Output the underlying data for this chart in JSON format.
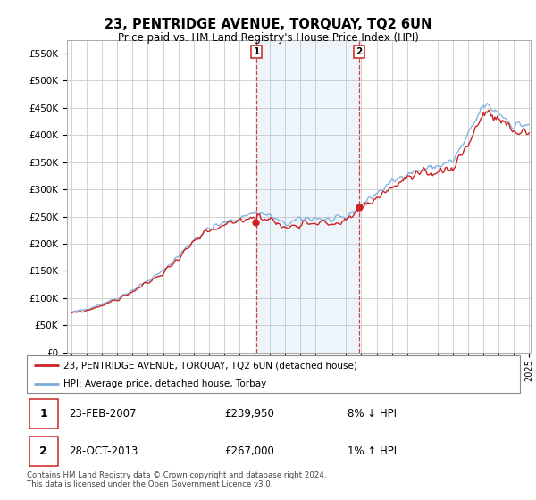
{
  "title": "23, PENTRIDGE AVENUE, TORQUAY, TQ2 6UN",
  "subtitle": "Price paid vs. HM Land Registry's House Price Index (HPI)",
  "ylabel_ticks": [
    "£0",
    "£50K",
    "£100K",
    "£150K",
    "£200K",
    "£250K",
    "£300K",
    "£350K",
    "£400K",
    "£450K",
    "£500K",
    "£550K"
  ],
  "ytick_values": [
    0,
    50000,
    100000,
    150000,
    200000,
    250000,
    300000,
    350000,
    400000,
    450000,
    500000,
    550000
  ],
  "ylim": [
    0,
    575000
  ],
  "x_start_year": 1995,
  "x_end_year": 2025,
  "sale1_year": 2007.12,
  "sale1_price": 239950,
  "sale1_label": "1",
  "sale1_date": "23-FEB-2007",
  "sale1_pct": "8% ↓ HPI",
  "sale2_year": 2013.83,
  "sale2_price": 267000,
  "sale2_label": "2",
  "sale2_date": "28-OCT-2013",
  "sale2_pct": "1% ↑ HPI",
  "legend_line1": "23, PENTRIDGE AVENUE, TORQUAY, TQ2 6UN (detached house)",
  "legend_line2": "HPI: Average price, detached house, Torbay",
  "footnote": "Contains HM Land Registry data © Crown copyright and database right 2024.\nThis data is licensed under the Open Government Licence v3.0.",
  "price_line_color": "#cc2222",
  "hpi_line_color": "#7aadda",
  "marker_color": "#cc2222",
  "vline_color": "#cc2222",
  "grid_color": "#cccccc",
  "bg_color": "#ffffff",
  "hpi_seed": 42,
  "price_seed": 99,
  "hpi_data": {
    "t": [
      1995.0,
      1995.083,
      1995.167,
      1995.25,
      1995.333,
      1995.417,
      1995.5,
      1995.583,
      1995.667,
      1995.75,
      1995.833,
      1995.917,
      1996.0,
      1996.083,
      1996.167,
      1996.25,
      1996.333,
      1996.417,
      1996.5,
      1996.583,
      1996.667,
      1996.75,
      1996.833,
      1996.917,
      1997.0,
      1997.083,
      1997.167,
      1997.25,
      1997.333,
      1997.417,
      1997.5,
      1997.583,
      1997.667,
      1997.75,
      1997.833,
      1997.917,
      1998.0,
      1998.083,
      1998.167,
      1998.25,
      1998.333,
      1998.417,
      1998.5,
      1998.583,
      1998.667,
      1998.75,
      1998.833,
      1998.917,
      1999.0,
      1999.083,
      1999.167,
      1999.25,
      1999.333,
      1999.417,
      1999.5,
      1999.583,
      1999.667,
      1999.75,
      1999.833,
      1999.917,
      2000.0,
      2000.083,
      2000.167,
      2000.25,
      2000.333,
      2000.417,
      2000.5,
      2000.583,
      2000.667,
      2000.75,
      2000.833,
      2000.917,
      2001.0,
      2001.083,
      2001.167,
      2001.25,
      2001.333,
      2001.417,
      2001.5,
      2001.583,
      2001.667,
      2001.75,
      2001.833,
      2001.917,
      2002.0,
      2002.083,
      2002.167,
      2002.25,
      2002.333,
      2002.417,
      2002.5,
      2002.583,
      2002.667,
      2002.75,
      2002.833,
      2002.917,
      2003.0,
      2003.083,
      2003.167,
      2003.25,
      2003.333,
      2003.417,
      2003.5,
      2003.583,
      2003.667,
      2003.75,
      2003.833,
      2003.917,
      2004.0,
      2004.083,
      2004.167,
      2004.25,
      2004.333,
      2004.417,
      2004.5,
      2004.583,
      2004.667,
      2004.75,
      2004.833,
      2004.917,
      2005.0,
      2005.083,
      2005.167,
      2005.25,
      2005.333,
      2005.417,
      2005.5,
      2005.583,
      2005.667,
      2005.75,
      2005.833,
      2005.917,
      2006.0,
      2006.083,
      2006.167,
      2006.25,
      2006.333,
      2006.417,
      2006.5,
      2006.583,
      2006.667,
      2006.75,
      2006.833,
      2006.917,
      2007.0,
      2007.083,
      2007.167,
      2007.25,
      2007.333,
      2007.417,
      2007.5,
      2007.583,
      2007.667,
      2007.75,
      2007.833,
      2007.917,
      2008.0,
      2008.083,
      2008.167,
      2008.25,
      2008.333,
      2008.417,
      2008.5,
      2008.583,
      2008.667,
      2008.75,
      2008.833,
      2008.917,
      2009.0,
      2009.083,
      2009.167,
      2009.25,
      2009.333,
      2009.417,
      2009.5,
      2009.583,
      2009.667,
      2009.75,
      2009.833,
      2009.917,
      2010.0,
      2010.083,
      2010.167,
      2010.25,
      2010.333,
      2010.417,
      2010.5,
      2010.583,
      2010.667,
      2010.75,
      2010.833,
      2010.917,
      2011.0,
      2011.083,
      2011.167,
      2011.25,
      2011.333,
      2011.417,
      2011.5,
      2011.583,
      2011.667,
      2011.75,
      2011.833,
      2011.917,
      2012.0,
      2012.083,
      2012.167,
      2012.25,
      2012.333,
      2012.417,
      2012.5,
      2012.583,
      2012.667,
      2012.75,
      2012.833,
      2012.917,
      2013.0,
      2013.083,
      2013.167,
      2013.25,
      2013.333,
      2013.417,
      2013.5,
      2013.583,
      2013.667,
      2013.75,
      2013.833,
      2013.917,
      2014.0,
      2014.083,
      2014.167,
      2014.25,
      2014.333,
      2014.417,
      2014.5,
      2014.583,
      2014.667,
      2014.75,
      2014.833,
      2014.917,
      2015.0,
      2015.083,
      2015.167,
      2015.25,
      2015.333,
      2015.417,
      2015.5,
      2015.583,
      2015.667,
      2015.75,
      2015.833,
      2015.917,
      2016.0,
      2016.083,
      2016.167,
      2016.25,
      2016.333,
      2016.417,
      2016.5,
      2016.583,
      2016.667,
      2016.75,
      2016.833,
      2016.917,
      2017.0,
      2017.083,
      2017.167,
      2017.25,
      2017.333,
      2017.417,
      2017.5,
      2017.583,
      2017.667,
      2017.75,
      2017.833,
      2017.917,
      2018.0,
      2018.083,
      2018.167,
      2018.25,
      2018.333,
      2018.417,
      2018.5,
      2018.583,
      2018.667,
      2018.75,
      2018.833,
      2018.917,
      2019.0,
      2019.083,
      2019.167,
      2019.25,
      2019.333,
      2019.417,
      2019.5,
      2019.583,
      2019.667,
      2019.75,
      2019.833,
      2019.917,
      2020.0,
      2020.083,
      2020.167,
      2020.25,
      2020.333,
      2020.417,
      2020.5,
      2020.583,
      2020.667,
      2020.75,
      2020.833,
      2020.917,
      2021.0,
      2021.083,
      2021.167,
      2021.25,
      2021.333,
      2021.417,
      2021.5,
      2021.583,
      2021.667,
      2021.75,
      2021.833,
      2021.917,
      2022.0,
      2022.083,
      2022.167,
      2022.25,
      2022.333,
      2022.417,
      2022.5,
      2022.583,
      2022.667,
      2022.75,
      2022.833,
      2022.917,
      2023.0,
      2023.083,
      2023.167,
      2023.25,
      2023.333,
      2023.417,
      2023.5,
      2023.583,
      2023.667,
      2023.75,
      2023.833,
      2023.917,
      2024.0,
      2024.083,
      2024.167,
      2024.25,
      2024.333,
      2024.417,
      2024.5,
      2024.583,
      2024.667,
      2024.75,
      2024.833,
      2024.917,
      2025.0
    ]
  },
  "annual_hpi": [
    74000,
    80000,
    90000,
    100000,
    115000,
    132000,
    150000,
    178000,
    207000,
    228000,
    238000,
    248000,
    258000,
    252000,
    235000,
    245000,
    248000,
    243000,
    248000,
    272000,
    293000,
    313000,
    330000,
    336000,
    343000,
    352000,
    398000,
    455000,
    442000,
    418000,
    420000
  ],
  "annual_price": [
    72000,
    77000,
    87000,
    97000,
    112000,
    128000,
    146000,
    174000,
    202000,
    222000,
    232000,
    242000,
    252000,
    246000,
    228000,
    239000,
    241000,
    236000,
    241000,
    265000,
    285000,
    304000,
    320000,
    325000,
    333000,
    341000,
    385000,
    440000,
    428000,
    405000,
    408000
  ]
}
